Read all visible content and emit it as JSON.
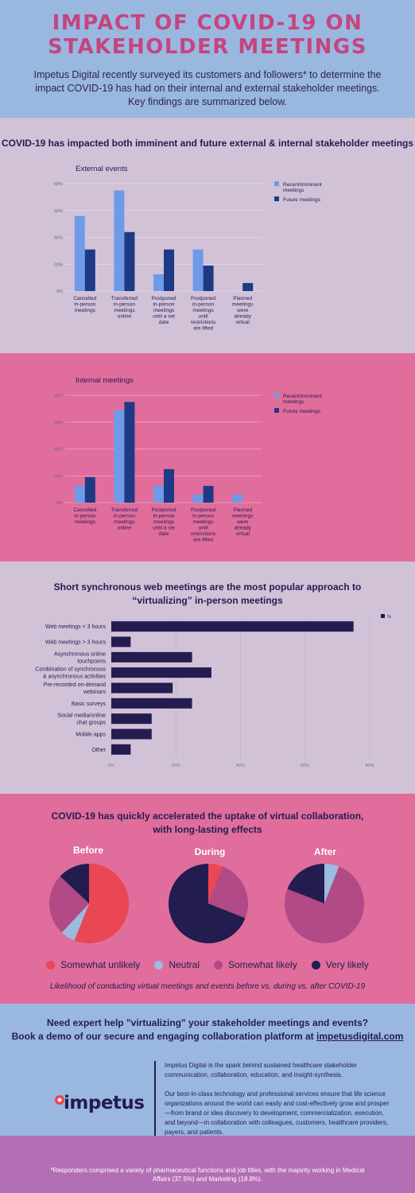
{
  "hero": {
    "title_line1": "IMPACT OF COVID-19 ON",
    "title_line2": "STAKEHOLDER MEETINGS",
    "intro": "Impetus Digital recently surveyed its customers and followers* to determine the impact COVID-19 has had on their internal and external stakeholder meetings. Key findings are summarized below."
  },
  "section1": {
    "title": "COVID-19 has impacted both imminent and future external & internal stakeholder meetings"
  },
  "section2": {
    "title_line1": "Short synchronous web meetings are the most popular approach to",
    "title_line2": "“virtualizing” in-person meetings"
  },
  "section3": {
    "title_line1": "COVID-19 has quickly accelerated the uptake of virtual collaboration,",
    "title_line2": "with long-lasting effects",
    "labels": [
      "Before",
      "During",
      "After"
    ],
    "caption": "Likelihood of conducting virtual meetings and events before vs. during vs. after COVID-19"
  },
  "cta": {
    "line1": "Need expert help \"virtualizing\" your stakeholder meetings and events?",
    "line2_prefix": "Book a demo of our secure and engaging collaboration platform at ",
    "link": "impetusdigital.com",
    "logo": "impetus",
    "about_p1": "Impetus Digital is the spark behind sustained healthcare stakeholder communication, collaboration, education, and insight-synthesis.",
    "about_p2": "Our best-in-class technology and professional services ensure that life science organizations around the world can easily and cost-effectively grow and prosper—from brand or idea discovery to development, commercialization, execution, and beyond—in collaboration with colleagues, customers, healthcare providers, payers, and patients.",
    "footnote": "*Responders comprised a variety of pharmaceutical functions and job titles, with the majority working in Medical Affairs (37.5%) and Marketing (18.8%)."
  },
  "colors": {
    "recent": "#6e9be8",
    "future": "#1e3a85",
    "web_bar": "#231c4f",
    "unlikely": "#ea4654",
    "neutral": "#9bbbe1",
    "somewhat": "#b14a86",
    "very": "#231c4f"
  },
  "chart_data": [
    {
      "type": "bar",
      "title": "External events",
      "categories": [
        [
          "Cancelled",
          "in-person",
          "meetings"
        ],
        [
          "Transferred",
          "in-person",
          "meetings",
          "online"
        ],
        [
          "Postponed",
          "in-person",
          "meetings",
          "until a set",
          "date"
        ],
        [
          "Postponed",
          "in-person",
          "meetings",
          "until",
          "restrictions",
          "are lifted"
        ],
        [
          "Planned",
          "meetings",
          "were",
          "already",
          "virtual"
        ]
      ],
      "series": [
        {
          "name": "Recent/imminent meetings",
          "values": [
            56,
            75,
            12.5,
            31,
            0
          ]
        },
        {
          "name": "Future meetings",
          "values": [
            31,
            44,
            31,
            19,
            6
          ]
        }
      ],
      "ylim": [
        0,
        80
      ],
      "yticks": [
        "0%",
        "20%",
        "40%",
        "60%",
        "80%"
      ],
      "legend": [
        "Recent/imminent",
        "meetings",
        "Future meetings"
      ]
    },
    {
      "type": "bar",
      "title": "Internal meetings",
      "categories": [
        [
          "Cancelled",
          "in-person",
          "meetings"
        ],
        [
          "Transferred",
          "in-person",
          "meetings",
          "online"
        ],
        [
          "Postponed",
          "in-person",
          "meetings",
          "until a set",
          "date"
        ],
        [
          "Postponed",
          "in-person",
          "meetings",
          "until",
          "restrictions",
          "are lifted"
        ],
        [
          "Planned",
          "meetings",
          "were",
          "already",
          "virtual"
        ]
      ],
      "series": [
        {
          "name": "Recent/imminent meetings",
          "values": [
            12.5,
            69,
            12.5,
            6,
            6
          ]
        },
        {
          "name": "Future meetings",
          "values": [
            19,
            75,
            25,
            12.5,
            0
          ]
        }
      ],
      "ylim": [
        0,
        80
      ],
      "yticks": [
        "0%",
        "20%",
        "40%",
        "60%",
        "80%"
      ],
      "legend": [
        "Recent/imminent",
        "meetings",
        "Future meetings"
      ]
    },
    {
      "type": "bar",
      "orientation": "horizontal",
      "categories": [
        [
          "Web meetings < 3 hours"
        ],
        [
          "Web meetings > 3 hours"
        ],
        [
          "Asynchronous online",
          "touchpoints"
        ],
        [
          "Combination of synchronous",
          "& asynchronous activities"
        ],
        [
          "Pre-recorded on-demand",
          "webinars"
        ],
        [
          "Basic surveys"
        ],
        [
          "Social media/online",
          "chat groups"
        ],
        [
          "Mobile apps"
        ],
        [
          "Other"
        ]
      ],
      "series": [
        {
          "name": "%",
          "values": [
            75,
            6,
            25,
            31,
            19,
            25,
            12.5,
            12.5,
            6
          ]
        }
      ],
      "xlim": [
        0,
        80
      ],
      "xticks": [
        "0%",
        "20%",
        "40%",
        "60%",
        "80%"
      ],
      "legend": [
        "%"
      ]
    },
    {
      "type": "pie",
      "title": "Before",
      "slices": [
        {
          "name": "Somewhat unlikely",
          "value": 56
        },
        {
          "name": "Neutral",
          "value": 6
        },
        {
          "name": "Somewhat likely",
          "value": 25
        },
        {
          "name": "Very likely",
          "value": 13
        }
      ]
    },
    {
      "type": "pie",
      "title": "During",
      "slices": [
        {
          "name": "Somewhat unlikely",
          "value": 6
        },
        {
          "name": "Neutral",
          "value": 0
        },
        {
          "name": "Somewhat likely",
          "value": 25
        },
        {
          "name": "Very likely",
          "value": 69
        }
      ]
    },
    {
      "type": "pie",
      "title": "After",
      "slices": [
        {
          "name": "Somewhat unlikely",
          "value": 0
        },
        {
          "name": "Neutral",
          "value": 6
        },
        {
          "name": "Somewhat likely",
          "value": 75
        },
        {
          "name": "Very likely",
          "value": 19
        }
      ]
    }
  ],
  "pie_legend": [
    "Somewhat unlikely",
    "Neutral",
    "Somewhat likely",
    "Very likely"
  ]
}
